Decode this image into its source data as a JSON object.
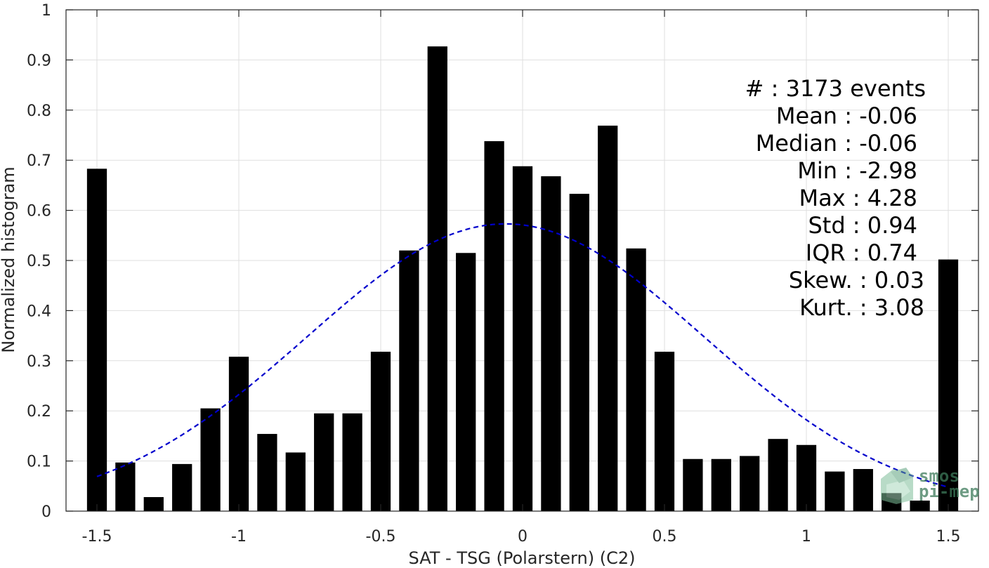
{
  "chart_data": {
    "type": "bar",
    "xlabel": "SAT - TSG (Polarstern) (C2)",
    "ylabel": "Normalized histogram",
    "xlim": [
      -1.5,
      1.5
    ],
    "ylim": [
      0,
      1
    ],
    "xticks": [
      -1.5,
      -1,
      -0.5,
      0,
      0.5,
      1,
      1.5
    ],
    "xtick_labels": [
      "-1.5",
      "-1",
      "-0.5",
      "0",
      "0.5",
      "1",
      "1.5"
    ],
    "yticks": [
      0,
      0.1,
      0.2,
      0.3,
      0.4,
      0.5,
      0.6,
      0.7,
      0.8,
      0.9,
      1
    ],
    "ytick_labels": [
      "0",
      "0.1",
      "0.2",
      "0.3",
      "0.4",
      "0.5",
      "0.6",
      "0.7",
      "0.8",
      "0.9",
      "1"
    ],
    "grid": true,
    "bar_width": 0.07,
    "bars": {
      "x": [
        -1.5,
        -1.4,
        -1.3,
        -1.2,
        -1.1,
        -1.0,
        -0.9,
        -0.8,
        -0.7,
        -0.6,
        -0.5,
        -0.4,
        -0.3,
        -0.2,
        -0.1,
        0.0,
        0.1,
        0.2,
        0.3,
        0.4,
        0.5,
        0.6,
        0.7,
        0.8,
        0.9,
        1.0,
        1.1,
        1.2,
        1.3,
        1.4,
        1.5
      ],
      "values": [
        0.683,
        0.097,
        0.028,
        0.094,
        0.205,
        0.308,
        0.154,
        0.117,
        0.195,
        0.195,
        0.318,
        0.52,
        0.927,
        0.515,
        0.738,
        0.688,
        0.668,
        0.633,
        0.769,
        0.524,
        0.318,
        0.104,
        0.104,
        0.11,
        0.144,
        0.132,
        0.079,
        0.084,
        0.036,
        0.021,
        0.502
      ],
      "color": "#000000"
    },
    "gaussian_fit": {
      "mean": -0.06,
      "peak": 0.573,
      "std": 0.7,
      "x_range": [
        -1.5,
        1.5
      ],
      "color": "#0000cc",
      "style": "dashed"
    },
    "stats": [
      {
        "label": "#  ",
        "value": ": 3173 events"
      },
      {
        "label": "Mean ",
        "value": ": -0.06"
      },
      {
        "label": "Median ",
        "value": ": -0.06"
      },
      {
        "label": "Min ",
        "value": ": -2.98"
      },
      {
        "label": "Max ",
        "value": ": 4.28"
      },
      {
        "label": "Std ",
        "value": ": 0.94"
      },
      {
        "label": "IQR ",
        "value": ": 0.74"
      },
      {
        "label": "Skew. ",
        "value": ": 0.03"
      },
      {
        "label": "Kurt. ",
        "value": ": 3.08"
      }
    ],
    "logo": {
      "line1": "smos",
      "line2": "pi-mep",
      "color": "#3d7a5a"
    }
  }
}
